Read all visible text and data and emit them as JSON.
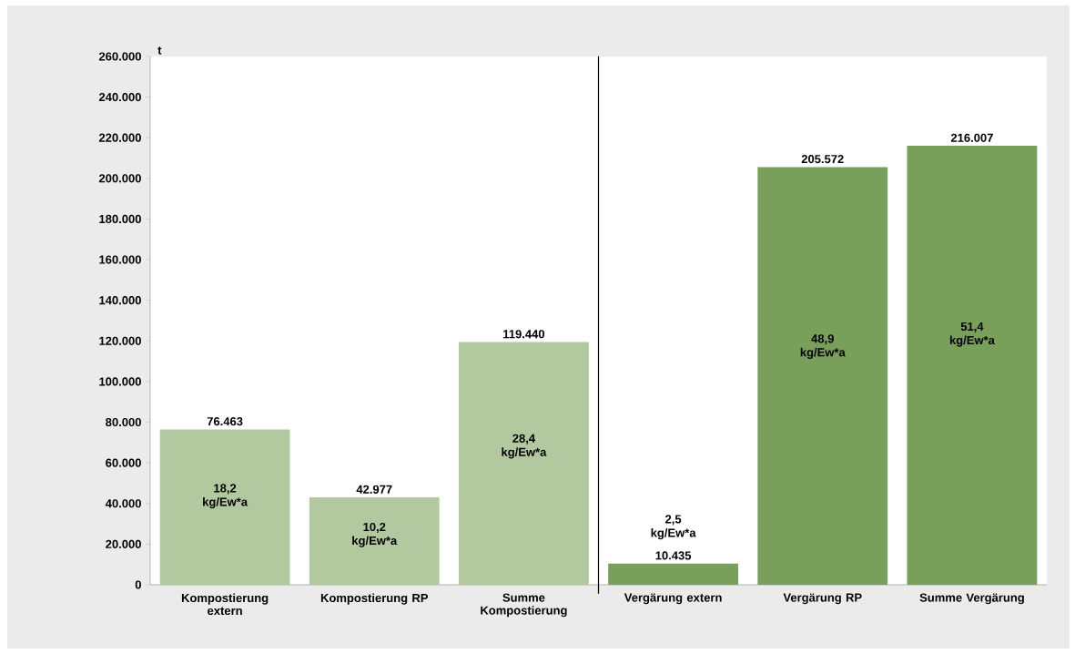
{
  "chart_data": {
    "type": "bar",
    "ylabel": "t",
    "categories": [
      "Kompostierung extern",
      "Kompostierung RP",
      "Summe Kompostierung",
      "Vergärung extern",
      "Vergärung RP",
      "Summe Vergärung"
    ],
    "values": [
      76463,
      42977,
      119440,
      10435,
      205572,
      216007
    ],
    "colors": [
      "#b2c9a0",
      "#b2c9a0",
      "#b2c9a0",
      "#78a05a",
      "#78a05a",
      "#78a05a"
    ],
    "value_labels": [
      "76.463",
      "42.977",
      "119.440",
      "10.435",
      "205.572",
      "216.007"
    ],
    "ylim": [
      0,
      260000
    ],
    "yticks": [
      0,
      {
        "value": 20000,
        "label": "20.000"
      },
      {
        "value": 40000,
        "label": "40.000"
      },
      {
        "value": 60000,
        "label": "60.000"
      },
      {
        "value": 80000,
        "label": "80.000"
      },
      {
        "value": 100000,
        "label": "100.000"
      },
      {
        "value": 120000,
        "label": "120.000"
      },
      {
        "value": 140000,
        "label": "140.000"
      },
      {
        "value": 160000,
        "label": "160.000"
      },
      {
        "value": 180000,
        "label": "180.000"
      },
      {
        "value": 200000,
        "label": "200.000"
      },
      {
        "value": 220000,
        "label": "220.000"
      },
      {
        "value": 240000,
        "label": "240.000"
      },
      {
        "value": 260000,
        "label": "260.000"
      }
    ],
    "annotations": [
      "18,2 kg/Ew*a",
      "10,2 kg/Ew*a",
      "28,4 kg/Ew*a",
      "2,5 kg/Ew*a",
      "48,9 kg/Ew*a",
      "51,4 kg/Ew*a"
    ]
  }
}
